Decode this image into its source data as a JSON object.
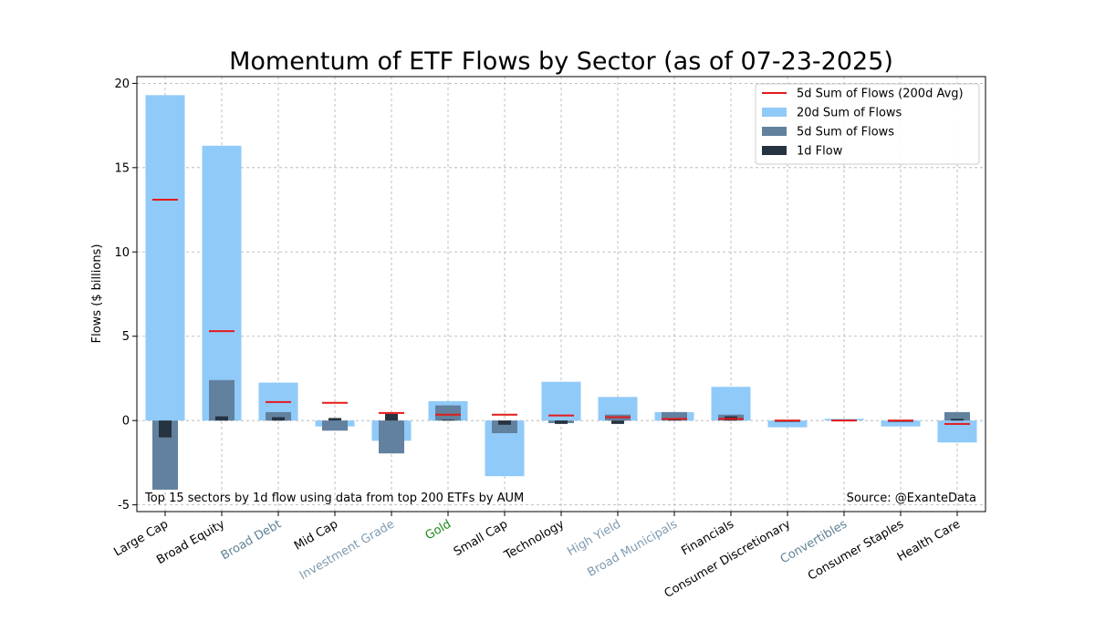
{
  "chart_data": {
    "type": "bar",
    "title": "Momentum of ETF Flows by Sector (as of 07-23-2025)",
    "xlabel": "",
    "ylabel": "Flows ($ billions)",
    "ylim": [
      -5.4,
      20.4
    ],
    "yticks": [
      -5,
      0,
      5,
      10,
      15,
      20
    ],
    "grid": true,
    "legend_position": "top-right",
    "categories": [
      "Large Cap",
      "Broad Equity",
      "Broad Debt",
      "Mid Cap",
      "Investment Grade",
      "Gold",
      "Small Cap",
      "Technology",
      "High Yield",
      "Broad Municipals",
      "Financials",
      "Consumer Discretionary",
      "Convertibles",
      "Consumer Staples",
      "Health Care"
    ],
    "category_colors": [
      "#000000",
      "#000000",
      "#5f8294",
      "#000000",
      "#7f9bb0",
      "#1a8a1a",
      "#000000",
      "#000000",
      "#7f9bb0",
      "#7f9bb0",
      "#000000",
      "#000000",
      "#5f8294",
      "#000000",
      "#000000"
    ],
    "series": [
      {
        "name": "5d Sum of Flows (200d Avg)",
        "kind": "marker",
        "color": "#e41a1c",
        "values": [
          13.1,
          5.3,
          1.1,
          1.05,
          0.45,
          0.35,
          0.35,
          0.3,
          0.2,
          0.1,
          0.1,
          0.0,
          0.0,
          0.0,
          -0.2
        ]
      },
      {
        "name": "20d Sum of Flows",
        "kind": "bar",
        "color": "#90caf9",
        "values": [
          19.3,
          16.3,
          2.25,
          -0.35,
          -1.2,
          1.15,
          -3.3,
          2.3,
          1.4,
          0.5,
          2.0,
          -0.4,
          0.1,
          -0.35,
          -1.3
        ]
      },
      {
        "name": "5d Sum of Flows",
        "kind": "bar",
        "color": "#62819e",
        "values": [
          -4.1,
          2.4,
          0.5,
          -0.6,
          -1.95,
          0.9,
          -0.75,
          -0.15,
          0.35,
          0.5,
          0.35,
          -0.1,
          0.05,
          -0.1,
          0.5
        ]
      },
      {
        "name": "1d Flow",
        "kind": "bar",
        "color": "#263340",
        "values": [
          -1.0,
          0.25,
          0.2,
          0.15,
          0.4,
          0.05,
          -0.25,
          -0.2,
          -0.2,
          0.05,
          0.25,
          -0.05,
          0.0,
          -0.05,
          0.1
        ]
      }
    ],
    "annotations": [
      {
        "text": "Top 15 sectors by 1d flow using data from top 200 ETFs by AUM",
        "position": "bottom-left"
      },
      {
        "text": "Source: @ExanteData",
        "position": "bottom-right"
      }
    ]
  }
}
